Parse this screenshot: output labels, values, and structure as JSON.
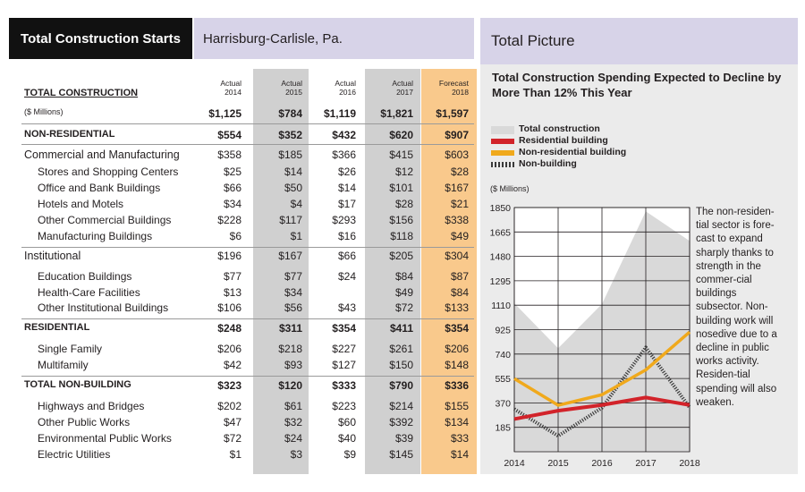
{
  "header": {
    "title": "Total Construction Starts",
    "subtitle": "Harrisburg-Carlisle, Pa."
  },
  "table": {
    "columns": [
      {
        "label1": "Actual",
        "label2": "2014"
      },
      {
        "label1": "Actual",
        "label2": "2015"
      },
      {
        "label1": "Actual",
        "label2": "2016"
      },
      {
        "label1": "Actual",
        "label2": "2017"
      },
      {
        "label1": "Forecast",
        "label2": "2018"
      }
    ],
    "rows": [
      {
        "label": "TOTAL CONSTRUCTION",
        "style": "header-underline",
        "values": [
          "",
          "",
          "",
          "",
          ""
        ]
      },
      {
        "label": "($ Millions)",
        "style": "small",
        "values": [
          "$1,125",
          "$784",
          "$1,119",
          "$1,821",
          "$1,597"
        ]
      },
      {
        "label": "NON-RESIDENTIAL",
        "style": "section",
        "values": [
          "$554",
          "$352",
          "$432",
          "$620",
          "$907"
        ]
      },
      {
        "label": "Commercial and Manufacturing",
        "style": "group",
        "values": [
          "$358",
          "$185",
          "$366",
          "$415",
          "$603"
        ]
      },
      {
        "label": "Stores and Shopping Centers",
        "style": "item",
        "values": [
          "$25",
          "$14",
          "$26",
          "$12",
          "$28"
        ]
      },
      {
        "label": "Office and Bank Buildings",
        "style": "item",
        "values": [
          "$66",
          "$50",
          "$14",
          "$101",
          "$167"
        ]
      },
      {
        "label": "Hotels and Motels",
        "style": "item",
        "values": [
          "$34",
          "$4",
          "$17",
          "$28",
          "$21"
        ]
      },
      {
        "label": "Other Commercial Buildings",
        "style": "item",
        "values": [
          "$228",
          "$117",
          "$293",
          "$156",
          "$338"
        ]
      },
      {
        "label": "Manufacturing Buildings",
        "style": "item",
        "values": [
          "$6",
          "$1",
          "$16",
          "$118",
          "$49"
        ]
      },
      {
        "label": "Institutional",
        "style": "group",
        "values": [
          "$196",
          "$167",
          "$66",
          "$205",
          "$304"
        ]
      },
      {
        "label": "Education Buildings",
        "style": "item",
        "values": [
          "$77",
          "$77",
          "$24",
          "$84",
          "$87"
        ]
      },
      {
        "label": "Health-Care Facilities",
        "style": "item",
        "values": [
          "$13",
          "$34",
          "",
          "$49",
          "$84"
        ]
      },
      {
        "label": "Other Institutional Buildings",
        "style": "item",
        "values": [
          "$106",
          "$56",
          "$43",
          "$72",
          "$133"
        ]
      },
      {
        "label": "RESIDENTIAL",
        "style": "section",
        "values": [
          "$248",
          "$311",
          "$354",
          "$411",
          "$354"
        ]
      },
      {
        "label": "Single Family",
        "style": "item",
        "values": [
          "$206",
          "$218",
          "$227",
          "$261",
          "$206"
        ]
      },
      {
        "label": "Multifamily",
        "style": "item",
        "values": [
          "$42",
          "$93",
          "$127",
          "$150",
          "$148"
        ]
      },
      {
        "label": "TOTAL NON-BUILDING",
        "style": "section",
        "values": [
          "$323",
          "$120",
          "$333",
          "$790",
          "$336"
        ]
      },
      {
        "label": "Highways and Bridges",
        "style": "item",
        "values": [
          "$202",
          "$61",
          "$223",
          "$214",
          "$155"
        ]
      },
      {
        "label": "Other Public Works",
        "style": "item",
        "values": [
          "$47",
          "$32",
          "$60",
          "$392",
          "$134"
        ]
      },
      {
        "label": "Environmental Public Works",
        "style": "item",
        "values": [
          "$72",
          "$24",
          "$40",
          "$39",
          "$33"
        ]
      },
      {
        "label": "Electric Utilities",
        "style": "item",
        "values": [
          "$1",
          "$3",
          "$9",
          "$145",
          "$14"
        ]
      }
    ]
  },
  "panel": {
    "header": "Total Picture",
    "note": "The non-residen-tial sector is fore-cast to expand sharply thanks to strength in the commer-cial buildings subsector. Non-building work will nosedive due to a decline in public works activity. Residen-tial spending will also weaken."
  },
  "colors": {
    "total": "#d9d9d9",
    "residential": "#d2232a",
    "nonresidential": "#f0a91c",
    "nonbuilding": "#3a3a3a",
    "table_shade": "#d0d0d0",
    "forecast_shade": "#f9c98c",
    "header_purple": "#d7d3e8"
  },
  "chart_data": {
    "type": "line",
    "title": "Total Construction Spending Expected to Decline by More Than 12% This Year",
    "ylabel": "($ Millions)",
    "x": [
      2014,
      2015,
      2016,
      2017,
      2018
    ],
    "x_tick_labels": [
      "2014",
      "2015",
      "2016",
      "2017",
      "2018"
    ],
    "y_ticks": [
      185,
      370,
      555,
      740,
      925,
      1110,
      1295,
      1480,
      1665,
      1850
    ],
    "ylim": [
      0,
      1850
    ],
    "grid": true,
    "legend_position": "top-left",
    "series": [
      {
        "name": "Total construction",
        "kind": "area",
        "values": [
          1125,
          784,
          1119,
          1821,
          1597
        ]
      },
      {
        "name": "Residential building",
        "kind": "line",
        "values": [
          248,
          311,
          354,
          411,
          354
        ]
      },
      {
        "name": "Non-residential building",
        "kind": "line",
        "values": [
          554,
          352,
          432,
          620,
          907
        ]
      },
      {
        "name": "Non-building",
        "kind": "dashed",
        "values": [
          323,
          120,
          333,
          790,
          336
        ]
      }
    ]
  }
}
